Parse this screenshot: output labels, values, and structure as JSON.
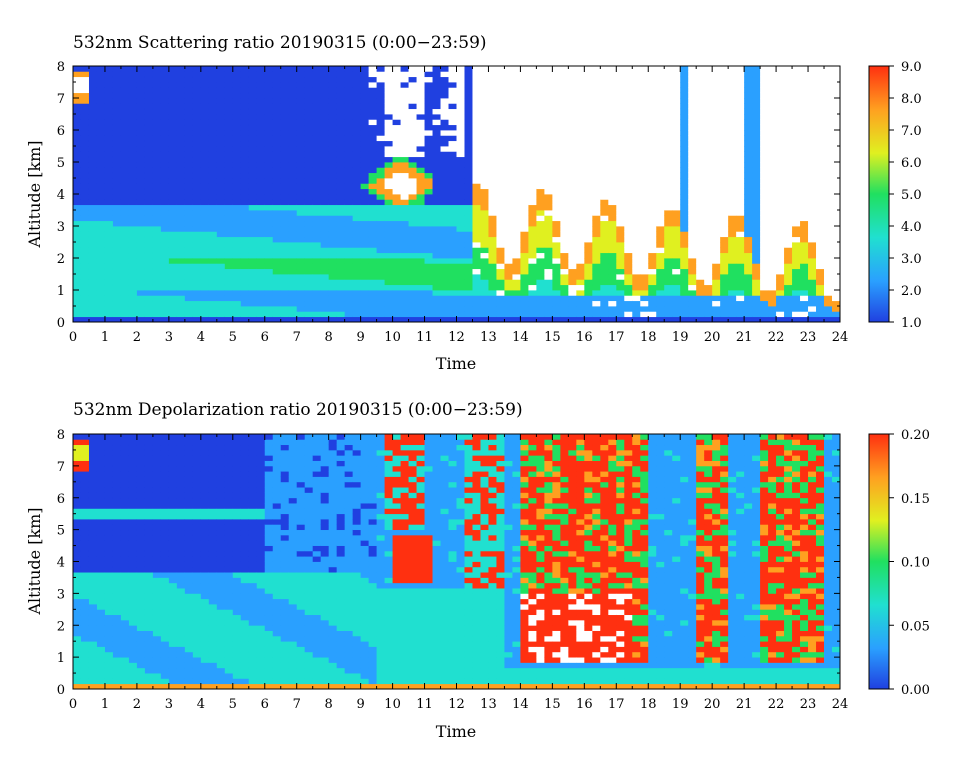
{
  "chart_data": [
    {
      "type": "heatmap",
      "title": "532nm Scattering ratio  20190315 (0:00−23:59)",
      "xlabel": "Time",
      "ylabel": "Altitude [km]",
      "xlim": [
        0,
        24
      ],
      "ylim": [
        0,
        8
      ],
      "x_ticks": [
        "0",
        "1",
        "2",
        "3",
        "4",
        "5",
        "6",
        "7",
        "8",
        "9",
        "10",
        "11",
        "12",
        "13",
        "14",
        "15",
        "16",
        "17",
        "18",
        "19",
        "20",
        "21",
        "22",
        "23",
        "24"
      ],
      "y_ticks": [
        "0",
        "1",
        "2",
        "3",
        "4",
        "5",
        "6",
        "7",
        "8"
      ],
      "colorbar": {
        "range": [
          1.0,
          9.0
        ],
        "ticks": [
          "1.0",
          "2.0",
          "3.0",
          "4.0",
          "5.0",
          "6.0",
          "7.0",
          "8.0",
          "9.0"
        ],
        "colors": [
          "#2040e0",
          "#2aa0ff",
          "#20e0d0",
          "#20e060",
          "#e0f020",
          "#ffa020",
          "#ff3010"
        ]
      }
    },
    {
      "type": "heatmap",
      "title": "532nm Depolarization ratio  20190315 (0:00−23:59)",
      "xlabel": "Time",
      "ylabel": "Altitude [km]",
      "xlim": [
        0,
        24
      ],
      "ylim": [
        0,
        8
      ],
      "x_ticks": [
        "0",
        "1",
        "2",
        "3",
        "4",
        "5",
        "6",
        "7",
        "8",
        "9",
        "10",
        "11",
        "12",
        "13",
        "14",
        "15",
        "16",
        "17",
        "18",
        "19",
        "20",
        "21",
        "22",
        "23",
        "24"
      ],
      "y_ticks": [
        "0",
        "1",
        "2",
        "3",
        "4",
        "5",
        "6",
        "7",
        "8"
      ],
      "colorbar": {
        "range": [
          0.0,
          0.2
        ],
        "ticks": [
          "0.00",
          "0.05",
          "0.10",
          "0.15",
          "0.20"
        ],
        "colors": [
          "#2040e0",
          "#2aa0ff",
          "#20e0d0",
          "#20e060",
          "#e0f020",
          "#ffa020",
          "#ff3010"
        ]
      }
    }
  ]
}
